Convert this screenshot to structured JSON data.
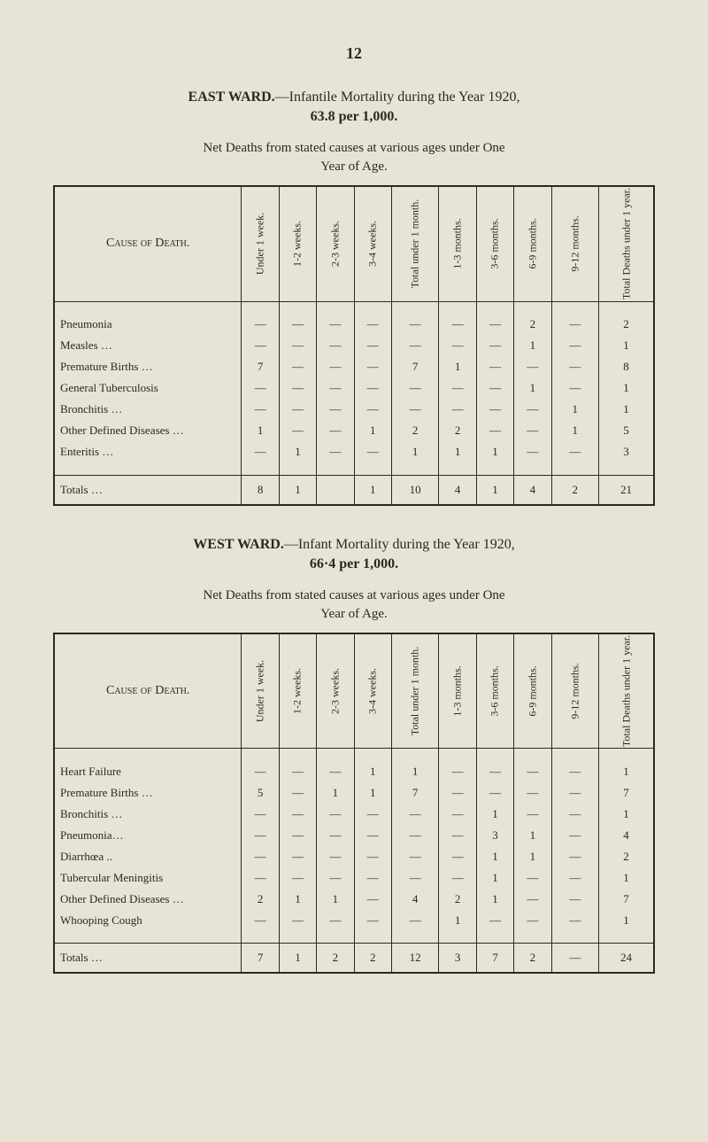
{
  "page_number": "12",
  "east_ward": {
    "heading_html": "<span class='bold'>EAST WARD.</span>—Infantile Mortality during the Year 1920,",
    "rate": "63.8 per 1,000.",
    "desc1": "Net Deaths from stated causes at various ages under One",
    "desc2": "Year of Age.",
    "headers": {
      "cause": "Cause of Death.",
      "cols": [
        "Under 1 week.",
        "1-2 weeks.",
        "2-3 weeks.",
        "3-4 weeks.",
        "Total under 1 month.",
        "1-3 months.",
        "3-6 months.",
        "6-9 months.",
        "9-12 months.",
        "Total Deaths under 1 year."
      ]
    },
    "rows": [
      {
        "cause": "Pneumonia",
        "cells": [
          "—",
          "—",
          "—",
          "—",
          "—",
          "—",
          "—",
          "2",
          "—",
          "2"
        ]
      },
      {
        "cause": "Measles …",
        "cells": [
          "—",
          "—",
          "—",
          "—",
          "—",
          "—",
          "—",
          "1",
          "—",
          "1"
        ]
      },
      {
        "cause": "Premature Births …",
        "cells": [
          "7",
          "—",
          "—",
          "—",
          "7",
          "1",
          "—",
          "—",
          "—",
          "8"
        ]
      },
      {
        "cause": "General Tuberculosis",
        "cells": [
          "—",
          "—",
          "—",
          "—",
          "—",
          "—",
          "—",
          "1",
          "—",
          "1"
        ]
      },
      {
        "cause": "Bronchitis …",
        "cells": [
          "—",
          "—",
          "—",
          "—",
          "—",
          "—",
          "—",
          "—",
          "1",
          "1"
        ]
      },
      {
        "cause": "Other Defined Diseases …",
        "cells": [
          "1",
          "—",
          "—",
          "1",
          "2",
          "2",
          "—",
          "—",
          "1",
          "5"
        ]
      },
      {
        "cause": "Enteritis …",
        "cells": [
          "—",
          "1",
          "—",
          "—",
          "1",
          "1",
          "1",
          "—",
          "—",
          "3"
        ]
      }
    ],
    "totals": {
      "label": "Totals …",
      "cells": [
        "8",
        "1",
        "",
        "1",
        "10",
        "4",
        "1",
        "4",
        "2",
        "21"
      ]
    }
  },
  "west_ward": {
    "heading_html": "<span class='bold'>WEST WARD.</span>—Infant Mortality during the Year 1920,",
    "rate": "66·4 per 1,000.",
    "desc1": "Net Deaths from stated causes at various ages under One",
    "desc2": "Year of Age.",
    "headers": {
      "cause": "Cause of Death.",
      "cols": [
        "Under 1 week.",
        "1-2 weeks.",
        "2-3 weeks.",
        "3-4 weeks.",
        "Total under 1 month.",
        "1-3 months.",
        "3-6 months.",
        "6-9 months.",
        "9-12 months.",
        "Total Deaths under 1 year."
      ]
    },
    "rows": [
      {
        "cause": "Heart Failure",
        "cells": [
          "—",
          "—",
          "—",
          "1",
          "1",
          "—",
          "—",
          "—",
          "—",
          "1"
        ]
      },
      {
        "cause": "Premature Births …",
        "cells": [
          "5",
          "—",
          "1",
          "1",
          "7",
          "—",
          "—",
          "—",
          "—",
          "7"
        ]
      },
      {
        "cause": "Bronchitis …",
        "cells": [
          "—",
          "—",
          "—",
          "—",
          "—",
          "—",
          "1",
          "—",
          "—",
          "1"
        ]
      },
      {
        "cause": "Pneumonia…",
        "cells": [
          "—",
          "—",
          "—",
          "—",
          "—",
          "—",
          "3",
          "1",
          "—",
          "4"
        ]
      },
      {
        "cause": "Diarrhœa ..",
        "cells": [
          "—",
          "—",
          "—",
          "—",
          "—",
          "—",
          "1",
          "1",
          "—",
          "2"
        ]
      },
      {
        "cause": "Tubercular Meningitis",
        "cells": [
          "—",
          "—",
          "—",
          "—",
          "—",
          "—",
          "1",
          "—",
          "—",
          "1"
        ]
      },
      {
        "cause": "Other Defined Diseases …",
        "cells": [
          "2",
          "1",
          "1",
          "—",
          "4",
          "2",
          "1",
          "—",
          "—",
          "7"
        ]
      },
      {
        "cause": "Whooping Cough",
        "cells": [
          "—",
          "—",
          "—",
          "—",
          "—",
          "1",
          "—",
          "—",
          "—",
          "1"
        ]
      }
    ],
    "totals": {
      "label": "Totals …",
      "cells": [
        "7",
        "1",
        "2",
        "2",
        "12",
        "3",
        "7",
        "2",
        "—",
        "24"
      ]
    }
  }
}
